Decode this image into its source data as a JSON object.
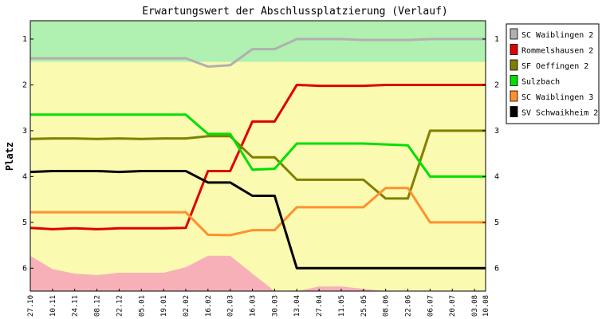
{
  "chart_data": {
    "type": "line",
    "title": "Erwartungswert der Abschlussplatzierung (Verlauf)",
    "ylabel": "Platz",
    "xlabel": "",
    "ylim": [
      0.6,
      6.5
    ],
    "y_reversed": true,
    "yticks": [
      1,
      2,
      3,
      4,
      5,
      6
    ],
    "categories": [
      "27.10",
      "10.11",
      "24.11",
      "08.12",
      "22.12",
      "05.01",
      "19.01",
      "02.02",
      "16.02",
      "02.03",
      "16.03",
      "30.03",
      "13.04",
      "27.04",
      "11.05",
      "25.05",
      "08.06",
      "22.06",
      "06.07",
      "20.07",
      "03.08",
      "10.08"
    ],
    "x_positions": [
      0,
      1,
      2,
      3,
      4,
      5,
      6,
      7,
      8,
      9,
      10,
      11,
      12,
      13,
      14,
      15,
      16,
      17,
      18,
      19,
      20,
      20.5
    ],
    "background_zones": [
      {
        "from": 0.6,
        "to": 1.5,
        "color": "#b0f0b0"
      },
      {
        "from": 1.5,
        "to": 6.5,
        "color": "#fafab0"
      }
    ],
    "area": {
      "color": "#f8b0b8",
      "values": [
        5.73,
        6.02,
        6.12,
        6.15,
        6.1,
        6.1,
        6.1,
        5.98,
        5.73,
        5.73,
        6.12,
        6.5,
        6.5,
        6.4,
        6.4,
        6.45,
        6.55,
        6.55,
        6.55,
        6.55,
        6.55,
        6.55
      ]
    },
    "series": [
      {
        "name": "SC Waiblingen 2",
        "color": "#b0b0b0",
        "values": [
          1.42,
          1.42,
          1.42,
          1.42,
          1.42,
          1.42,
          1.42,
          1.42,
          1.6,
          1.57,
          1.22,
          1.22,
          1.0,
          1.0,
          1.0,
          1.02,
          1.02,
          1.02,
          1.0,
          1.0,
          1.0,
          1.0
        ]
      },
      {
        "name": "Rommelshausen 2",
        "color": "#e00000",
        "values": [
          5.12,
          5.15,
          5.13,
          5.15,
          5.13,
          5.13,
          5.13,
          5.12,
          3.88,
          3.88,
          2.8,
          2.8,
          2.0,
          2.02,
          2.02,
          2.02,
          2.0,
          2.0,
          2.0,
          2.0,
          2.0,
          2.0
        ]
      },
      {
        "name": "SF Oeffingen 2",
        "color": "#808000",
        "values": [
          3.18,
          3.17,
          3.17,
          3.18,
          3.17,
          3.18,
          3.17,
          3.17,
          3.12,
          3.12,
          3.58,
          3.58,
          4.07,
          4.07,
          4.07,
          4.07,
          4.48,
          4.48,
          3.0,
          3.0,
          3.0,
          3.0
        ]
      },
      {
        "name": "Sulzbach",
        "color": "#00e000",
        "values": [
          2.65,
          2.65,
          2.65,
          2.65,
          2.65,
          2.65,
          2.65,
          2.65,
          3.07,
          3.07,
          3.85,
          3.83,
          3.28,
          3.28,
          3.28,
          3.28,
          3.3,
          3.32,
          4.0,
          4.0,
          4.0,
          4.0
        ]
      },
      {
        "name": "SC Waiblingen 3",
        "color": "#ff9030",
        "values": [
          4.78,
          4.78,
          4.78,
          4.78,
          4.78,
          4.78,
          4.78,
          4.78,
          5.27,
          5.28,
          5.17,
          5.17,
          4.67,
          4.67,
          4.67,
          4.67,
          4.25,
          4.25,
          5.0,
          5.0,
          5.0,
          5.0
        ]
      },
      {
        "name": "SV Schwaikheim 2",
        "color": "#000000",
        "values": [
          3.9,
          3.88,
          3.88,
          3.88,
          3.9,
          3.88,
          3.88,
          3.88,
          4.13,
          4.13,
          4.42,
          4.42,
          6.0,
          6.0,
          6.0,
          6.0,
          6.0,
          6.0,
          6.0,
          6.0,
          6.0,
          6.0
        ]
      }
    ],
    "grid": false,
    "legend_position": "right"
  }
}
